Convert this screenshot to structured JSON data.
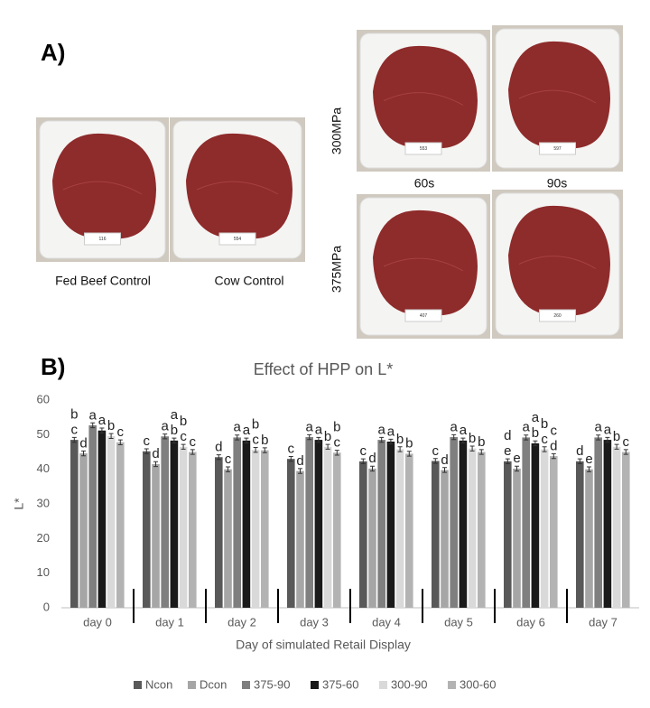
{
  "panel_a": {
    "label": "A)",
    "controls": [
      {
        "caption": "Fed Beef Control",
        "tag": "116"
      },
      {
        "caption": "Cow Control",
        "tag": "554"
      }
    ],
    "treatments": {
      "rows": [
        "300MPa",
        "375MPa"
      ],
      "columns": [
        "60s",
        "90s"
      ],
      "tags": [
        [
          "553",
          "597"
        ],
        [
          "407",
          "260"
        ]
      ]
    }
  },
  "panel_b_label": "B)",
  "chart_data": {
    "type": "bar",
    "title": "Effect of HPP on L*",
    "x_label": "Day of simulated Retail Display",
    "y_label": "L*",
    "categories": [
      "day 0",
      "day 1",
      "day 2",
      "day 3",
      "day 4",
      "day 5",
      "day 6",
      "day 7"
    ],
    "ylim": [
      0,
      60
    ],
    "yticks": [
      0,
      10,
      20,
      30,
      40,
      50,
      60
    ],
    "series": [
      {
        "name": "Ncon",
        "color": "#595959",
        "values": [
          48.5,
          45.2,
          43.5,
          43.0,
          42.3,
          42.4,
          42.3,
          42.3
        ],
        "errors": [
          0.7,
          0.7,
          0.7,
          0.7,
          0.7,
          0.7,
          0.7,
          0.7
        ],
        "letters": [
          "bc",
          "c",
          "d",
          "c",
          "c",
          "c",
          "de",
          "d"
        ]
      },
      {
        "name": "Dcon",
        "color": "#a6a6a6",
        "values": [
          44.6,
          41.5,
          40.0,
          39.5,
          40.2,
          39.8,
          40.2,
          40.0
        ],
        "errors": [
          0.7,
          0.7,
          0.7,
          0.7,
          0.7,
          0.7,
          0.7,
          0.7
        ],
        "letters": [
          "d",
          "d",
          "c",
          "d",
          "d",
          "d",
          "e",
          "e"
        ]
      },
      {
        "name": "375-90",
        "color": "#7f7f7f",
        "values": [
          52.7,
          49.5,
          49.2,
          49.3,
          48.5,
          49.3,
          49.2,
          49.2
        ],
        "errors": [
          0.7,
          0.7,
          0.7,
          0.7,
          0.7,
          0.7,
          0.7,
          0.7
        ],
        "letters": [
          "a",
          "a",
          "a",
          "a",
          "a",
          "a",
          "a",
          "a"
        ]
      },
      {
        "name": "375-60",
        "color": "#1a1a1a",
        "values": [
          51.2,
          48.3,
          48.3,
          48.5,
          48.0,
          48.3,
          47.5,
          48.5
        ],
        "errors": [
          0.7,
          0.7,
          0.7,
          0.7,
          0.7,
          0.7,
          0.7,
          0.7
        ],
        "letters": [
          "a",
          "ab",
          "a",
          "a",
          "a",
          "a",
          "ab",
          "a"
        ]
      },
      {
        "name": "300-90",
        "color": "#d9d9d9",
        "values": [
          49.6,
          46.5,
          45.6,
          46.5,
          45.8,
          46.0,
          45.8,
          46.5
        ],
        "errors": [
          0.7,
          0.7,
          0.7,
          0.7,
          0.7,
          0.7,
          0.7,
          0.7
        ],
        "letters": [
          "b",
          "bc",
          "bc",
          "b",
          "b",
          "b",
          "bc",
          "b"
        ]
      },
      {
        "name": "300-60",
        "color": "#b3b3b3",
        "values": [
          47.8,
          45.0,
          45.5,
          44.8,
          44.5,
          45.0,
          43.8,
          45.0
        ],
        "errors": [
          0.7,
          0.7,
          0.7,
          0.7,
          0.7,
          0.7,
          0.7,
          0.7
        ],
        "letters": [
          "c",
          "c",
          "b",
          "bc",
          "b",
          "b",
          "cd",
          "c"
        ]
      }
    ]
  }
}
